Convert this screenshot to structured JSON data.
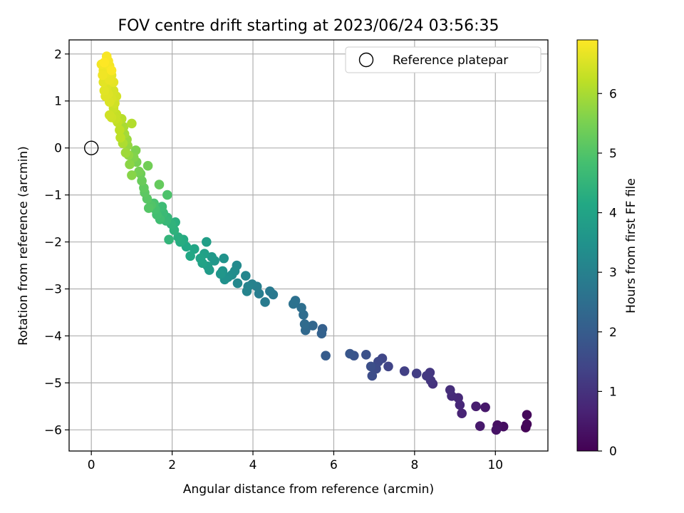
{
  "chart_data": {
    "type": "scatter",
    "title": "FOV centre drift starting at 2023/06/24 03:56:35",
    "xlabel": "Angular distance from reference (arcmin)",
    "ylabel": "Rotation from reference (arcmin)",
    "xlim": [
      -0.55,
      11.3
    ],
    "ylim": [
      -6.45,
      2.3
    ],
    "xticks": [
      0,
      2,
      4,
      6,
      8,
      10
    ],
    "yticks": [
      -6,
      -5,
      -4,
      -3,
      -2,
      -1,
      0,
      1,
      2
    ],
    "grid": true,
    "colormap": "viridis",
    "colorbar": {
      "label": "Hours from first FF file",
      "min": 0,
      "max": 6.9,
      "ticks": [
        0,
        1,
        2,
        3,
        4,
        5,
        6
      ]
    },
    "legend": {
      "placement": "top-right",
      "entries": [
        "Reference platepar"
      ]
    },
    "reference_point": {
      "x": 0,
      "y": 0
    },
    "series": [
      {
        "points": [
          {
            "x": 10.75,
            "y": -5.95,
            "h": 0.05
          },
          {
            "x": 10.78,
            "y": -5.88,
            "h": 0.1
          },
          {
            "x": 10.78,
            "y": -5.68,
            "h": 0.15
          },
          {
            "x": 10.2,
            "y": -5.93,
            "h": 0.25
          },
          {
            "x": 10.05,
            "y": -5.9,
            "h": 0.3
          },
          {
            "x": 10.02,
            "y": -6.0,
            "h": 0.35
          },
          {
            "x": 9.75,
            "y": -5.52,
            "h": 0.45
          },
          {
            "x": 9.62,
            "y": -5.92,
            "h": 0.5
          },
          {
            "x": 9.52,
            "y": -5.5,
            "h": 0.55
          },
          {
            "x": 9.17,
            "y": -5.65,
            "h": 0.7
          },
          {
            "x": 9.12,
            "y": -5.47,
            "h": 0.75
          },
          {
            "x": 9.08,
            "y": -5.32,
            "h": 0.8
          },
          {
            "x": 8.92,
            "y": -5.28,
            "h": 0.85
          },
          {
            "x": 8.88,
            "y": -5.15,
            "h": 0.9
          },
          {
            "x": 8.45,
            "y": -5.02,
            "h": 1.0
          },
          {
            "x": 8.4,
            "y": -4.95,
            "h": 1.05
          },
          {
            "x": 8.38,
            "y": -4.78,
            "h": 1.1
          },
          {
            "x": 8.3,
            "y": -4.85,
            "h": 1.15
          },
          {
            "x": 8.05,
            "y": -4.8,
            "h": 1.25
          },
          {
            "x": 7.75,
            "y": -4.75,
            "h": 1.3
          },
          {
            "x": 7.35,
            "y": -4.65,
            "h": 1.4
          },
          {
            "x": 7.2,
            "y": -4.48,
            "h": 1.45
          },
          {
            "x": 7.1,
            "y": -4.55,
            "h": 1.5
          },
          {
            "x": 7.05,
            "y": -4.7,
            "h": 1.55
          },
          {
            "x": 6.95,
            "y": -4.85,
            "h": 1.6
          },
          {
            "x": 6.92,
            "y": -4.65,
            "h": 1.65
          },
          {
            "x": 6.8,
            "y": -4.4,
            "h": 1.7
          },
          {
            "x": 6.5,
            "y": -4.42,
            "h": 1.8
          },
          {
            "x": 6.4,
            "y": -4.38,
            "h": 1.85
          },
          {
            "x": 5.8,
            "y": -4.42,
            "h": 2.0
          },
          {
            "x": 5.72,
            "y": -3.85,
            "h": 2.1
          },
          {
            "x": 5.7,
            "y": -3.95,
            "h": 2.15
          },
          {
            "x": 5.48,
            "y": -3.78,
            "h": 2.25
          },
          {
            "x": 5.32,
            "y": -3.82,
            "h": 2.3
          },
          {
            "x": 5.3,
            "y": -3.88,
            "h": 2.35
          },
          {
            "x": 5.28,
            "y": -3.75,
            "h": 2.4
          },
          {
            "x": 5.25,
            "y": -3.55,
            "h": 2.45
          },
          {
            "x": 5.2,
            "y": -3.4,
            "h": 2.5
          },
          {
            "x": 5.05,
            "y": -3.25,
            "h": 2.55
          },
          {
            "x": 5.0,
            "y": -3.32,
            "h": 2.6
          },
          {
            "x": 4.5,
            "y": -3.12,
            "h": 2.75
          },
          {
            "x": 4.42,
            "y": -3.05,
            "h": 2.8
          },
          {
            "x": 4.3,
            "y": -3.28,
            "h": 2.85
          },
          {
            "x": 4.15,
            "y": -3.1,
            "h": 2.9
          },
          {
            "x": 4.1,
            "y": -2.95,
            "h": 2.95
          },
          {
            "x": 3.98,
            "y": -2.9,
            "h": 3.0
          },
          {
            "x": 3.88,
            "y": -2.95,
            "h": 3.05
          },
          {
            "x": 3.85,
            "y": -3.05,
            "h": 3.1
          },
          {
            "x": 3.82,
            "y": -2.72,
            "h": 3.15
          },
          {
            "x": 3.62,
            "y": -2.88,
            "h": 3.2
          },
          {
            "x": 3.6,
            "y": -2.5,
            "h": 3.25
          },
          {
            "x": 3.55,
            "y": -2.62,
            "h": 3.3
          },
          {
            "x": 3.48,
            "y": -2.7,
            "h": 3.35
          },
          {
            "x": 3.38,
            "y": -2.75,
            "h": 3.4
          },
          {
            "x": 3.3,
            "y": -2.8,
            "h": 3.45
          },
          {
            "x": 3.28,
            "y": -2.35,
            "h": 3.5
          },
          {
            "x": 3.25,
            "y": -2.62,
            "h": 3.55
          },
          {
            "x": 3.2,
            "y": -2.68,
            "h": 3.6
          },
          {
            "x": 3.05,
            "y": -2.4,
            "h": 3.65
          },
          {
            "x": 2.98,
            "y": -2.32,
            "h": 3.7
          },
          {
            "x": 2.92,
            "y": -2.6,
            "h": 3.75
          },
          {
            "x": 2.88,
            "y": -2.52,
            "h": 3.8
          },
          {
            "x": 2.85,
            "y": -2.0,
            "h": 3.85
          },
          {
            "x": 2.8,
            "y": -2.25,
            "h": 3.9
          },
          {
            "x": 2.75,
            "y": -2.45,
            "h": 3.95
          },
          {
            "x": 2.7,
            "y": -2.35,
            "h": 4.0
          },
          {
            "x": 2.55,
            "y": -2.15,
            "h": 4.05
          },
          {
            "x": 2.45,
            "y": -2.3,
            "h": 4.1
          },
          {
            "x": 2.35,
            "y": -2.1,
            "h": 4.15
          },
          {
            "x": 2.28,
            "y": -1.95,
            "h": 4.2
          },
          {
            "x": 2.2,
            "y": -2.0,
            "h": 4.25
          },
          {
            "x": 2.15,
            "y": -1.9,
            "h": 4.3
          },
          {
            "x": 2.08,
            "y": -1.58,
            "h": 4.35
          },
          {
            "x": 2.05,
            "y": -1.75,
            "h": 4.4
          },
          {
            "x": 1.98,
            "y": -1.62,
            "h": 4.45
          },
          {
            "x": 1.92,
            "y": -1.95,
            "h": 4.5
          },
          {
            "x": 1.88,
            "y": -1.48,
            "h": 4.55
          },
          {
            "x": 1.85,
            "y": -1.55,
            "h": 4.6
          },
          {
            "x": 1.78,
            "y": -1.38,
            "h": 4.65
          },
          {
            "x": 1.75,
            "y": -1.25,
            "h": 4.7
          },
          {
            "x": 1.7,
            "y": -1.52,
            "h": 4.75
          },
          {
            "x": 1.62,
            "y": -1.42,
            "h": 4.8
          },
          {
            "x": 1.58,
            "y": -1.3,
            "h": 4.85
          },
          {
            "x": 1.55,
            "y": -1.18,
            "h": 4.9
          },
          {
            "x": 1.88,
            "y": -1.0,
            "h": 4.95
          },
          {
            "x": 1.48,
            "y": -1.22,
            "h": 5.0
          },
          {
            "x": 1.42,
            "y": -1.28,
            "h": 5.05
          },
          {
            "x": 1.38,
            "y": -1.08,
            "h": 5.1
          },
          {
            "x": 1.32,
            "y": -0.95,
            "h": 5.15
          },
          {
            "x": 1.3,
            "y": -0.85,
            "h": 5.2
          },
          {
            "x": 1.68,
            "y": -0.78,
            "h": 5.25
          },
          {
            "x": 1.25,
            "y": -0.7,
            "h": 5.3
          },
          {
            "x": 1.22,
            "y": -0.55,
            "h": 5.35
          },
          {
            "x": 1.4,
            "y": -0.38,
            "h": 5.4
          },
          {
            "x": 1.18,
            "y": -0.5,
            "h": 5.45
          },
          {
            "x": 1.12,
            "y": -0.3,
            "h": 5.5
          },
          {
            "x": 1.1,
            "y": -0.05,
            "h": 5.55
          },
          {
            "x": 1.05,
            "y": -0.2,
            "h": 5.6
          },
          {
            "x": 1.0,
            "y": -0.58,
            "h": 5.65
          },
          {
            "x": 0.95,
            "y": -0.35,
            "h": 5.7
          },
          {
            "x": 0.92,
            "y": -0.15,
            "h": 5.75
          },
          {
            "x": 0.9,
            "y": 0.05,
            "h": 5.8
          },
          {
            "x": 0.88,
            "y": 0.18,
            "h": 5.85
          },
          {
            "x": 0.85,
            "y": -0.1,
            "h": 5.9
          },
          {
            "x": 0.82,
            "y": 0.3,
            "h": 5.95
          },
          {
            "x": 0.8,
            "y": 0.45,
            "h": 6.0
          },
          {
            "x": 0.78,
            "y": 0.1,
            "h": 6.05
          },
          {
            "x": 1.0,
            "y": 0.52,
            "h": 6.1
          },
          {
            "x": 0.75,
            "y": 0.62,
            "h": 6.15
          },
          {
            "x": 0.72,
            "y": 0.22,
            "h": 6.2
          },
          {
            "x": 0.7,
            "y": 0.38,
            "h": 6.22
          },
          {
            "x": 0.65,
            "y": 0.55,
            "h": 6.25
          },
          {
            "x": 0.62,
            "y": 0.72,
            "h": 6.3
          },
          {
            "x": 0.6,
            "y": 0.62,
            "h": 6.32
          },
          {
            "x": 0.55,
            "y": 0.85,
            "h": 6.35
          },
          {
            "x": 0.5,
            "y": 0.65,
            "h": 6.38
          },
          {
            "x": 0.45,
            "y": 0.7,
            "h": 6.4
          },
          {
            "x": 0.58,
            "y": 0.95,
            "h": 6.42
          },
          {
            "x": 0.62,
            "y": 1.1,
            "h": 6.45
          },
          {
            "x": 0.55,
            "y": 1.22,
            "h": 6.48
          },
          {
            "x": 0.5,
            "y": 1.05,
            "h": 6.5
          },
          {
            "x": 0.45,
            "y": 0.98,
            "h": 6.52
          },
          {
            "x": 0.42,
            "y": 1.15,
            "h": 6.54
          },
          {
            "x": 0.38,
            "y": 1.3,
            "h": 6.56
          },
          {
            "x": 0.35,
            "y": 1.1,
            "h": 6.58
          },
          {
            "x": 0.32,
            "y": 1.22,
            "h": 6.6
          },
          {
            "x": 0.3,
            "y": 1.4,
            "h": 6.62
          },
          {
            "x": 0.55,
            "y": 1.4,
            "h": 6.64
          },
          {
            "x": 0.5,
            "y": 1.55,
            "h": 6.66
          },
          {
            "x": 0.45,
            "y": 1.45,
            "h": 6.68
          },
          {
            "x": 0.4,
            "y": 1.6,
            "h": 6.7
          },
          {
            "x": 0.35,
            "y": 1.72,
            "h": 6.72
          },
          {
            "x": 0.3,
            "y": 1.65,
            "h": 6.74
          },
          {
            "x": 0.28,
            "y": 1.55,
            "h": 6.76
          },
          {
            "x": 0.25,
            "y": 1.78,
            "h": 6.78
          },
          {
            "x": 0.45,
            "y": 1.75,
            "h": 6.8
          },
          {
            "x": 0.42,
            "y": 1.85,
            "h": 6.82
          },
          {
            "x": 0.38,
            "y": 1.95,
            "h": 6.85
          },
          {
            "x": 0.5,
            "y": 1.65,
            "h": 6.87
          },
          {
            "x": 0.32,
            "y": 1.82,
            "h": 6.9
          }
        ]
      }
    ]
  }
}
